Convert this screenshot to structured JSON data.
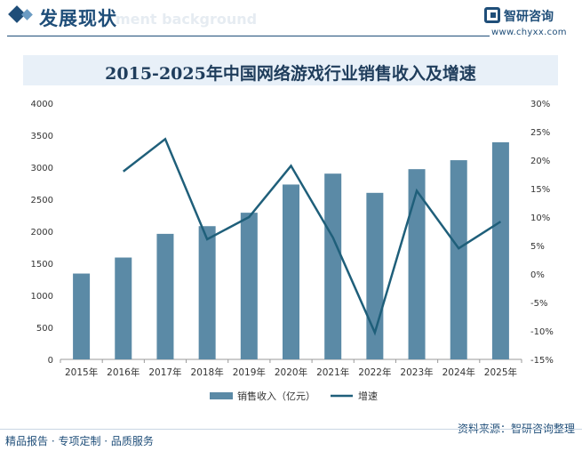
{
  "header": {
    "title": "发展现状",
    "watermark_text": "ment background",
    "brand_name": "智研咨询",
    "brand_url": "www.chyxx.com"
  },
  "chart_data": {
    "type": "bar",
    "title": "2015-2025年中国网络游戏行业销售收入及增速",
    "categories": [
      "2015年",
      "2016年",
      "2017年",
      "2018年",
      "2019年",
      "2020年",
      "2021年",
      "2022年",
      "2023年",
      "2024年",
      "2025年"
    ],
    "series": [
      {
        "name": "销售收入（亿元）",
        "type": "bar",
        "axis": "left",
        "color": "#5b8aa6",
        "values": [
          1340,
          1590,
          1960,
          2080,
          2290,
          2730,
          2900,
          2600,
          2970,
          3110,
          3390
        ]
      },
      {
        "name": "增速",
        "type": "line",
        "axis": "right",
        "color": "#1f5f7a",
        "values": [
          null,
          18.0,
          23.7,
          6.1,
          10.0,
          19.0,
          6.4,
          -10.3,
          14.6,
          4.5,
          9.2
        ]
      }
    ],
    "ylim_left": [
      0,
      4000
    ],
    "yticks_left": [
      0,
      500,
      1000,
      1500,
      2000,
      2500,
      3000,
      3500,
      4000
    ],
    "ylim_right": [
      -15,
      30
    ],
    "yticks_right": [
      "-15%",
      "-10%",
      "-5%",
      "0%",
      "5%",
      "10%",
      "15%",
      "20%",
      "25%",
      "30%"
    ],
    "legend": "bottom",
    "grid": false
  },
  "footer": {
    "left": "精品报告 · 专项定制 · 品质服务",
    "right": "资料来源：智研咨询整理"
  }
}
